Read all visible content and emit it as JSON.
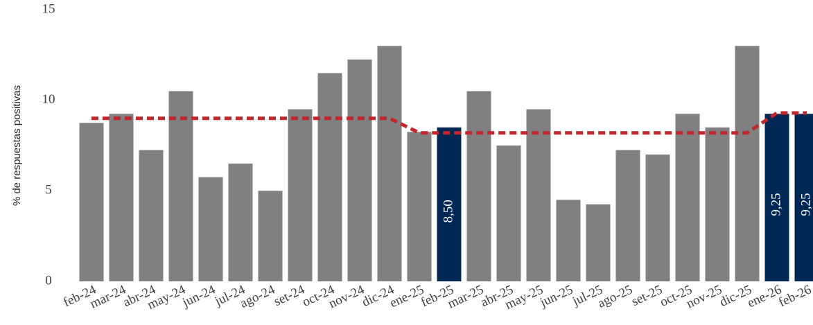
{
  "chart_data": {
    "type": "bar",
    "ylabel": "% de respuestas positivas",
    "categories": [
      "feb-24",
      "mar-24",
      "abr-24",
      "may-24",
      "jun-24",
      "jul-24",
      "ago-24",
      "set-24",
      "oct-24",
      "nov-24",
      "dic-24",
      "ene-25",
      "feb-25",
      "mar-25",
      "abr-25",
      "may-25",
      "jun-25",
      "jul-25",
      "ago-25",
      "set-25",
      "oct-25",
      "nov-25",
      "dic-25",
      "ene-26",
      "feb-26"
    ],
    "values": [
      8.75,
      9.25,
      7.25,
      10.5,
      5.75,
      6.5,
      5.0,
      9.5,
      11.5,
      12.25,
      13.0,
      8.25,
      8.5,
      10.5,
      7.5,
      9.5,
      4.5,
      4.25,
      7.25,
      7.0,
      9.25,
      8.5,
      13.0,
      9.25,
      9.25
    ],
    "value_labels": [
      null,
      null,
      null,
      null,
      null,
      null,
      null,
      null,
      null,
      null,
      null,
      null,
      "8,50",
      null,
      null,
      null,
      null,
      null,
      null,
      null,
      null,
      null,
      null,
      "9,25",
      "9,25"
    ],
    "colors": [
      "#808080",
      "#808080",
      "#808080",
      "#808080",
      "#808080",
      "#808080",
      "#808080",
      "#808080",
      "#808080",
      "#808080",
      "#808080",
      "#808080",
      "#002855",
      "#808080",
      "#808080",
      "#808080",
      "#808080",
      "#808080",
      "#808080",
      "#808080",
      "#808080",
      "#808080",
      "#808080",
      "#002855",
      "#002855"
    ],
    "average_line": {
      "color": "#c1272d",
      "values": [
        9.0,
        9.0,
        9.0,
        9.0,
        9.0,
        9.0,
        9.0,
        9.0,
        9.0,
        9.0,
        9.0,
        8.2,
        8.2,
        8.2,
        8.2,
        8.2,
        8.2,
        8.2,
        8.2,
        8.2,
        8.2,
        8.2,
        8.2,
        9.3,
        9.3
      ]
    },
    "ylim": [
      0,
      15
    ],
    "yticks": [
      0,
      5,
      10,
      15
    ]
  }
}
